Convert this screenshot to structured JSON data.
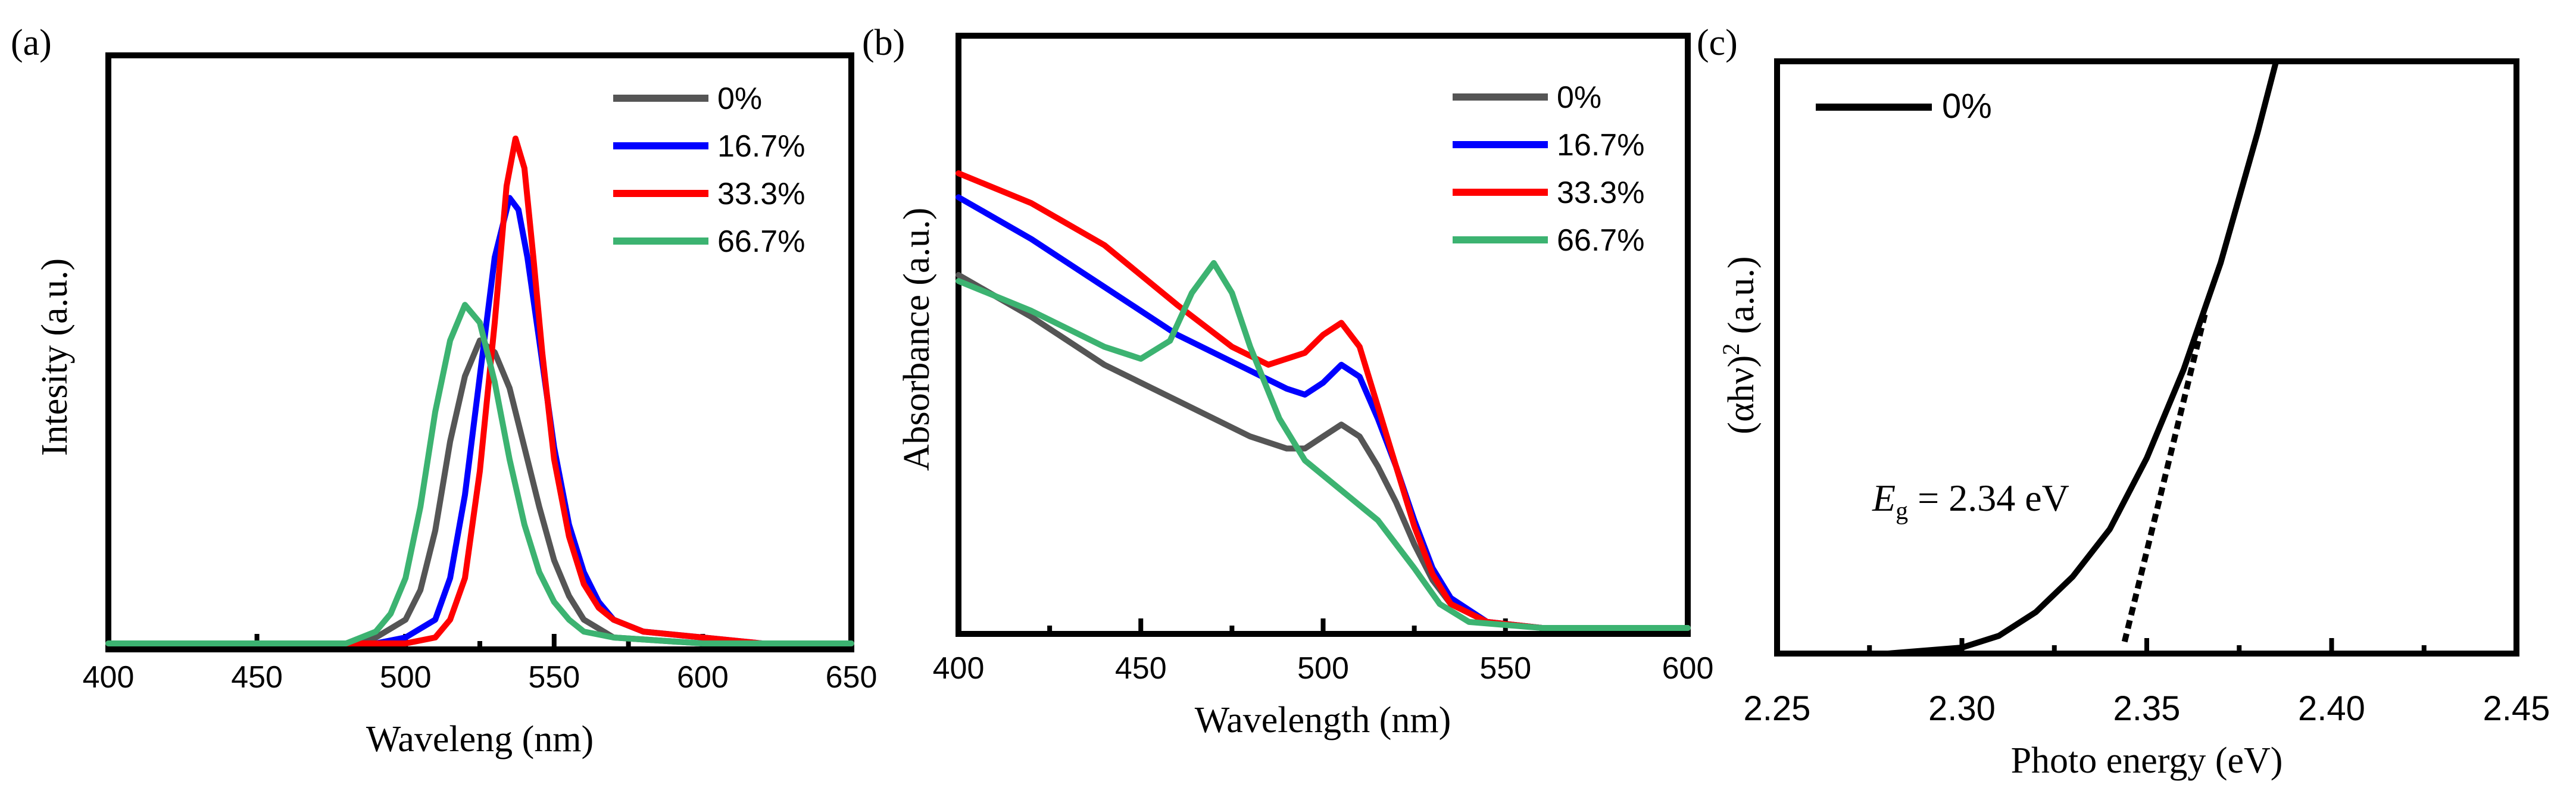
{
  "chart_data": [
    {
      "panel_label": "(a)",
      "type": "line",
      "xlabel": "Waveleng (nm)",
      "ylabel": "Intesity (a.u.)",
      "xlim": [
        400,
        650
      ],
      "ylim": [
        0,
        1.0
      ],
      "x_ticks": [
        "400",
        "450",
        "500",
        "550",
        "600",
        "650"
      ],
      "series": [
        {
          "name": "0%",
          "color": "#555555",
          "points": [
            [
              400,
              0.01
            ],
            [
              480,
              0.01
            ],
            [
              490,
              0.02
            ],
            [
              500,
              0.05
            ],
            [
              505,
              0.1
            ],
            [
              510,
              0.2
            ],
            [
              515,
              0.35
            ],
            [
              520,
              0.46
            ],
            [
              525,
              0.52
            ],
            [
              530,
              0.5
            ],
            [
              535,
              0.44
            ],
            [
              540,
              0.34
            ],
            [
              545,
              0.24
            ],
            [
              550,
              0.15
            ],
            [
              555,
              0.09
            ],
            [
              560,
              0.05
            ],
            [
              570,
              0.02
            ],
            [
              600,
              0.01
            ],
            [
              650,
              0.01
            ]
          ]
        },
        {
          "name": "16.7%",
          "color": "#0000ff",
          "points": [
            [
              400,
              0.01
            ],
            [
              490,
              0.01
            ],
            [
              500,
              0.02
            ],
            [
              510,
              0.05
            ],
            [
              515,
              0.12
            ],
            [
              520,
              0.26
            ],
            [
              525,
              0.46
            ],
            [
              530,
              0.66
            ],
            [
              535,
              0.76
            ],
            [
              538,
              0.74
            ],
            [
              541,
              0.66
            ],
            [
              545,
              0.52
            ],
            [
              550,
              0.34
            ],
            [
              555,
              0.21
            ],
            [
              560,
              0.13
            ],
            [
              565,
              0.08
            ],
            [
              570,
              0.05
            ],
            [
              580,
              0.03
            ],
            [
              600,
              0.02
            ],
            [
              620,
              0.01
            ],
            [
              650,
              0.01
            ]
          ]
        },
        {
          "name": "33.3%",
          "color": "#ff0000",
          "points": [
            [
              400,
              0.01
            ],
            [
              500,
              0.01
            ],
            [
              510,
              0.02
            ],
            [
              515,
              0.05
            ],
            [
              520,
              0.12
            ],
            [
              525,
              0.3
            ],
            [
              530,
              0.55
            ],
            [
              534,
              0.78
            ],
            [
              537,
              0.86
            ],
            [
              540,
              0.81
            ],
            [
              543,
              0.66
            ],
            [
              546,
              0.5
            ],
            [
              550,
              0.32
            ],
            [
              555,
              0.19
            ],
            [
              560,
              0.11
            ],
            [
              565,
              0.07
            ],
            [
              570,
              0.05
            ],
            [
              580,
              0.03
            ],
            [
              600,
              0.02
            ],
            [
              620,
              0.01
            ],
            [
              650,
              0.01
            ]
          ]
        },
        {
          "name": "66.7%",
          "color": "#3cb371",
          "points": [
            [
              400,
              0.01
            ],
            [
              480,
              0.01
            ],
            [
              490,
              0.03
            ],
            [
              495,
              0.06
            ],
            [
              500,
              0.12
            ],
            [
              505,
              0.24
            ],
            [
              510,
              0.4
            ],
            [
              515,
              0.52
            ],
            [
              520,
              0.58
            ],
            [
              525,
              0.55
            ],
            [
              530,
              0.45
            ],
            [
              535,
              0.32
            ],
            [
              540,
              0.21
            ],
            [
              545,
              0.13
            ],
            [
              550,
              0.08
            ],
            [
              555,
              0.05
            ],
            [
              560,
              0.03
            ],
            [
              570,
              0.02
            ],
            [
              600,
              0.01
            ],
            [
              650,
              0.01
            ]
          ]
        }
      ]
    },
    {
      "panel_label": "(b)",
      "type": "line",
      "xlabel": "Wavelength (nm)",
      "ylabel": "Absorbance (a.u.)",
      "xlim": [
        400,
        600
      ],
      "ylim": [
        0,
        1.0
      ],
      "x_ticks": [
        "400",
        "450",
        "500",
        "550",
        "600"
      ],
      "series": [
        {
          "name": "0%",
          "color": "#555555",
          "points": [
            [
              400,
              0.6
            ],
            [
              420,
              0.53
            ],
            [
              440,
              0.45
            ],
            [
              460,
              0.39
            ],
            [
              480,
              0.33
            ],
            [
              490,
              0.31
            ],
            [
              495,
              0.31
            ],
            [
              500,
              0.33
            ],
            [
              505,
              0.35
            ],
            [
              510,
              0.33
            ],
            [
              515,
              0.28
            ],
            [
              520,
              0.22
            ],
            [
              525,
              0.15
            ],
            [
              530,
              0.09
            ],
            [
              535,
              0.05
            ],
            [
              545,
              0.02
            ],
            [
              560,
              0.01
            ],
            [
              600,
              0.01
            ]
          ]
        },
        {
          "name": "16.7%",
          "color": "#0000ff",
          "points": [
            [
              400,
              0.73
            ],
            [
              420,
              0.66
            ],
            [
              440,
              0.58
            ],
            [
              460,
              0.5
            ],
            [
              480,
              0.44
            ],
            [
              490,
              0.41
            ],
            [
              495,
              0.4
            ],
            [
              500,
              0.42
            ],
            [
              505,
              0.45
            ],
            [
              510,
              0.43
            ],
            [
              515,
              0.36
            ],
            [
              520,
              0.28
            ],
            [
              525,
              0.19
            ],
            [
              530,
              0.11
            ],
            [
              535,
              0.06
            ],
            [
              545,
              0.02
            ],
            [
              560,
              0.01
            ],
            [
              600,
              0.01
            ]
          ]
        },
        {
          "name": "33.3%",
          "color": "#ff0000",
          "points": [
            [
              400,
              0.77
            ],
            [
              420,
              0.72
            ],
            [
              440,
              0.65
            ],
            [
              460,
              0.55
            ],
            [
              475,
              0.48
            ],
            [
              485,
              0.45
            ],
            [
              495,
              0.47
            ],
            [
              500,
              0.5
            ],
            [
              505,
              0.52
            ],
            [
              510,
              0.48
            ],
            [
              515,
              0.38
            ],
            [
              520,
              0.28
            ],
            [
              525,
              0.18
            ],
            [
              530,
              0.1
            ],
            [
              535,
              0.05
            ],
            [
              545,
              0.02
            ],
            [
              560,
              0.01
            ],
            [
              600,
              0.01
            ]
          ]
        },
        {
          "name": "66.7%",
          "color": "#3cb371",
          "points": [
            [
              400,
              0.59
            ],
            [
              420,
              0.54
            ],
            [
              440,
              0.48
            ],
            [
              450,
              0.46
            ],
            [
              458,
              0.49
            ],
            [
              464,
              0.57
            ],
            [
              470,
              0.62
            ],
            [
              475,
              0.57
            ],
            [
              480,
              0.48
            ],
            [
              488,
              0.36
            ],
            [
              495,
              0.29
            ],
            [
              505,
              0.24
            ],
            [
              515,
              0.19
            ],
            [
              525,
              0.11
            ],
            [
              532,
              0.05
            ],
            [
              540,
              0.02
            ],
            [
              560,
              0.01
            ],
            [
              600,
              0.01
            ]
          ]
        }
      ]
    },
    {
      "panel_label": "(c)",
      "type": "line",
      "xlabel": "Photo energy (eV)",
      "ylabel_main": "(αhν)",
      "ylabel_sup": "2",
      "ylabel_tail": " (a.u.)",
      "xlim": [
        2.25,
        2.45
      ],
      "ylim": [
        0,
        1.0
      ],
      "x_ticks": [
        "2.25",
        "2.30",
        "2.35",
        "2.40",
        "2.45"
      ],
      "annotation": {
        "symbol": "E",
        "subscript": "g",
        "text": " = 2.34 eV"
      },
      "series": [
        {
          "name": "0%",
          "color": "#000000",
          "points": [
            [
              2.26,
              0.0
            ],
            [
              2.28,
              0.0
            ],
            [
              2.3,
              0.01
            ],
            [
              2.31,
              0.03
            ],
            [
              2.32,
              0.07
            ],
            [
              2.33,
              0.13
            ],
            [
              2.34,
              0.21
            ],
            [
              2.35,
              0.33
            ],
            [
              2.36,
              0.48
            ],
            [
              2.37,
              0.66
            ],
            [
              2.38,
              0.88
            ],
            [
              2.385,
              1.0
            ]
          ]
        }
      ],
      "tangent": {
        "style": "dashed",
        "points": [
          [
            2.344,
            0.02
          ],
          [
            2.366,
            0.58
          ]
        ]
      }
    }
  ]
}
